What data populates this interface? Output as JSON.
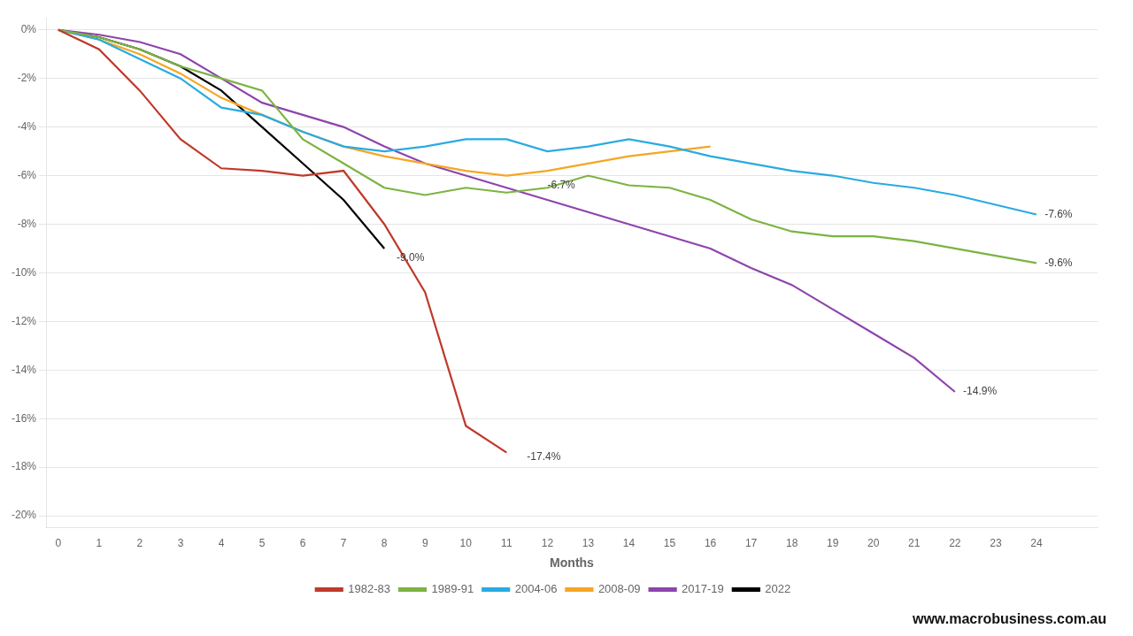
{
  "chart_data": {
    "type": "line",
    "x_label": "Months",
    "x": [
      0,
      1,
      2,
      3,
      4,
      5,
      6,
      7,
      8,
      9,
      10,
      11,
      12,
      13,
      14,
      15,
      16,
      17,
      18,
      19,
      20,
      21,
      22,
      23,
      24
    ],
    "series": [
      {
        "name": "1982-83",
        "color": "#C0392B",
        "values": [
          0,
          -0.8,
          -2.5,
          -4.5,
          -5.7,
          -5.8,
          -6.0,
          -5.8,
          -8.0,
          -10.8,
          -16.3,
          -17.4,
          null,
          null,
          null,
          null,
          null,
          null,
          null,
          null,
          null,
          null,
          null,
          null,
          null
        ]
      },
      {
        "name": "1989-91",
        "color": "#7CB342",
        "values": [
          0,
          -0.3,
          -0.8,
          -1.5,
          -2.0,
          -2.5,
          -4.5,
          -5.5,
          -6.5,
          -6.8,
          -6.5,
          -6.7,
          -6.5,
          -6.0,
          -6.4,
          -6.5,
          -7.0,
          -7.8,
          -8.3,
          -8.5,
          -8.5,
          -8.7,
          -9.0,
          -9.3,
          -9.6
        ]
      },
      {
        "name": "2004-06",
        "color": "#29ABE2",
        "values": [
          0,
          -0.4,
          -1.2,
          -2.0,
          -3.2,
          -3.5,
          -4.2,
          -4.8,
          -5.0,
          -4.8,
          -4.5,
          -4.5,
          -5.0,
          -4.8,
          -4.5,
          -4.8,
          -5.2,
          -5.5,
          -5.8,
          -6.0,
          -6.3,
          -6.5,
          -6.8,
          -7.2,
          -7.6
        ]
      },
      {
        "name": "2008-09",
        "color": "#F5A623",
        "values": [
          0,
          -0.4,
          -1.0,
          -1.8,
          -2.8,
          -3.5,
          -4.2,
          -4.8,
          -5.2,
          -5.5,
          -5.8,
          -6.0,
          -5.8,
          -5.5,
          -5.2,
          -5.0,
          -4.8,
          null,
          null,
          null,
          null,
          null,
          null,
          null,
          null
        ]
      },
      {
        "name": "2017-19",
        "color": "#8E44AD",
        "values": [
          0,
          -0.2,
          -0.5,
          -1.0,
          -2.0,
          -3.0,
          -3.5,
          -4.0,
          -4.8,
          -5.5,
          -6.0,
          -6.5,
          -7.0,
          -7.5,
          -8.0,
          -8.5,
          -9.0,
          -9.8,
          -10.5,
          -11.5,
          -12.5,
          -13.5,
          -14.9,
          null,
          null
        ]
      },
      {
        "name": "2022",
        "color": "#000000",
        "values": [
          0,
          -0.3,
          -0.8,
          -1.5,
          -2.5,
          -4.0,
          -5.5,
          -7.0,
          -9.0,
          null,
          null,
          null,
          null,
          null,
          null,
          null,
          null,
          null,
          null,
          null,
          null,
          null,
          null,
          null,
          null
        ]
      }
    ],
    "xlim": [
      -0.3,
      25.5
    ],
    "xticks": [
      0,
      1,
      2,
      3,
      4,
      5,
      6,
      7,
      8,
      9,
      10,
      11,
      12,
      13,
      14,
      15,
      16,
      17,
      18,
      19,
      20,
      21,
      22,
      23,
      24
    ],
    "ylim": [
      -20.5,
      0.5
    ],
    "yticks": [
      {
        "value": 0,
        "label": "0%"
      },
      {
        "value": -2,
        "label": "-2%"
      },
      {
        "value": -4,
        "label": "-4%"
      },
      {
        "value": -6,
        "label": "-6%"
      },
      {
        "value": -8,
        "label": "-8%"
      },
      {
        "value": -10,
        "label": "-10%"
      },
      {
        "value": -12,
        "label": "-12%"
      },
      {
        "value": -14,
        "label": "-14%"
      },
      {
        "value": -16,
        "label": "-16%"
      },
      {
        "value": -18,
        "label": "-18%"
      },
      {
        "value": -20,
        "label": "-20%"
      }
    ],
    "annotations": [
      {
        "text": "-17.4%",
        "x": 11.5,
        "y": -17.6
      },
      {
        "text": "-6.7%",
        "x": 12.0,
        "y": -6.4
      },
      {
        "text": "-9.6%",
        "x": 24.2,
        "y": -9.6
      },
      {
        "text": "-7.6%",
        "x": 24.2,
        "y": -7.6
      },
      {
        "text": "-14.9%",
        "x": 22.2,
        "y": -14.9
      },
      {
        "text": "-9.0%",
        "x": 8.3,
        "y": -9.4
      },
      {
        "text": "www.macrobusiness.com.au"
      }
    ],
    "grid": "y",
    "legend": "bottom"
  }
}
